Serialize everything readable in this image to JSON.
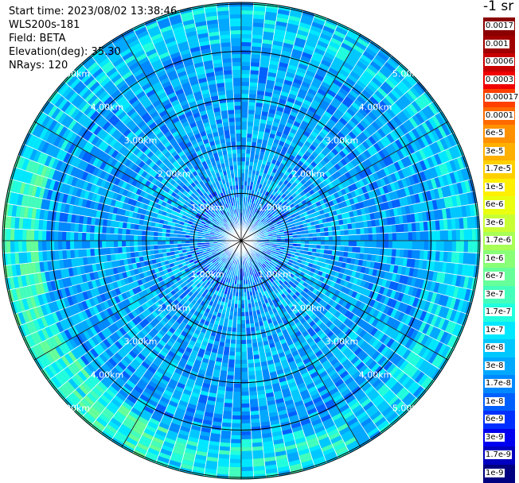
{
  "info": {
    "start_time": "Start time: 2023/08/02 13:38:46",
    "instrument": "WLS200s-181",
    "field": "Field: BETA",
    "elevation": "Elevation(deg): 35.30",
    "nrays": "NRays: 120"
  },
  "colorbar": {
    "unit": "-1 sr",
    "labels": [
      "0.0017",
      "0.001",
      "0.0006",
      "0.0003",
      "0.00017",
      "0.0001",
      "6e-5",
      "3e-5",
      "1.7e-5",
      "1e-5",
      "6e-6",
      "3e-6",
      "1.7e-6",
      "1e-6",
      "6e-7",
      "3e-7",
      "1.7e-7",
      "1e-7",
      "6e-8",
      "3e-8",
      "1.7e-8",
      "1e-8",
      "6e-9",
      "3e-9",
      "1.7e-9",
      "1e-9"
    ],
    "colors": [
      "#8b0000",
      "#a00000",
      "#c80000",
      "#f00000",
      "#ff4000",
      "#ff6a00",
      "#ff9000",
      "#ffb000",
      "#ffd000",
      "#ffef00",
      "#eaff10",
      "#c8ff34",
      "#a8ff55",
      "#88ff77",
      "#66ff99",
      "#44ffbb",
      "#22ffdd",
      "#00e8ff",
      "#00c8ff",
      "#00a8ff",
      "#0088ff",
      "#0060ff",
      "#0030ff",
      "#0000f0",
      "#0000c0",
      "#000080"
    ]
  },
  "chart_data": {
    "type": "heatmap",
    "projection": "polar PPI",
    "field": "BETA",
    "nrays": 120,
    "elevation_deg": 35.3,
    "range_rings_km": [
      1,
      2,
      3,
      4,
      5
    ],
    "ring_labels": [
      "1.00km",
      "2.00km",
      "3.00km",
      "4.00km",
      "5.00km"
    ],
    "radial_lines": 12,
    "color_scale": "log",
    "value_range": [
      1e-09,
      0.0017
    ],
    "dominant_value_band": [
      1e-08,
      1.7e-07
    ]
  }
}
